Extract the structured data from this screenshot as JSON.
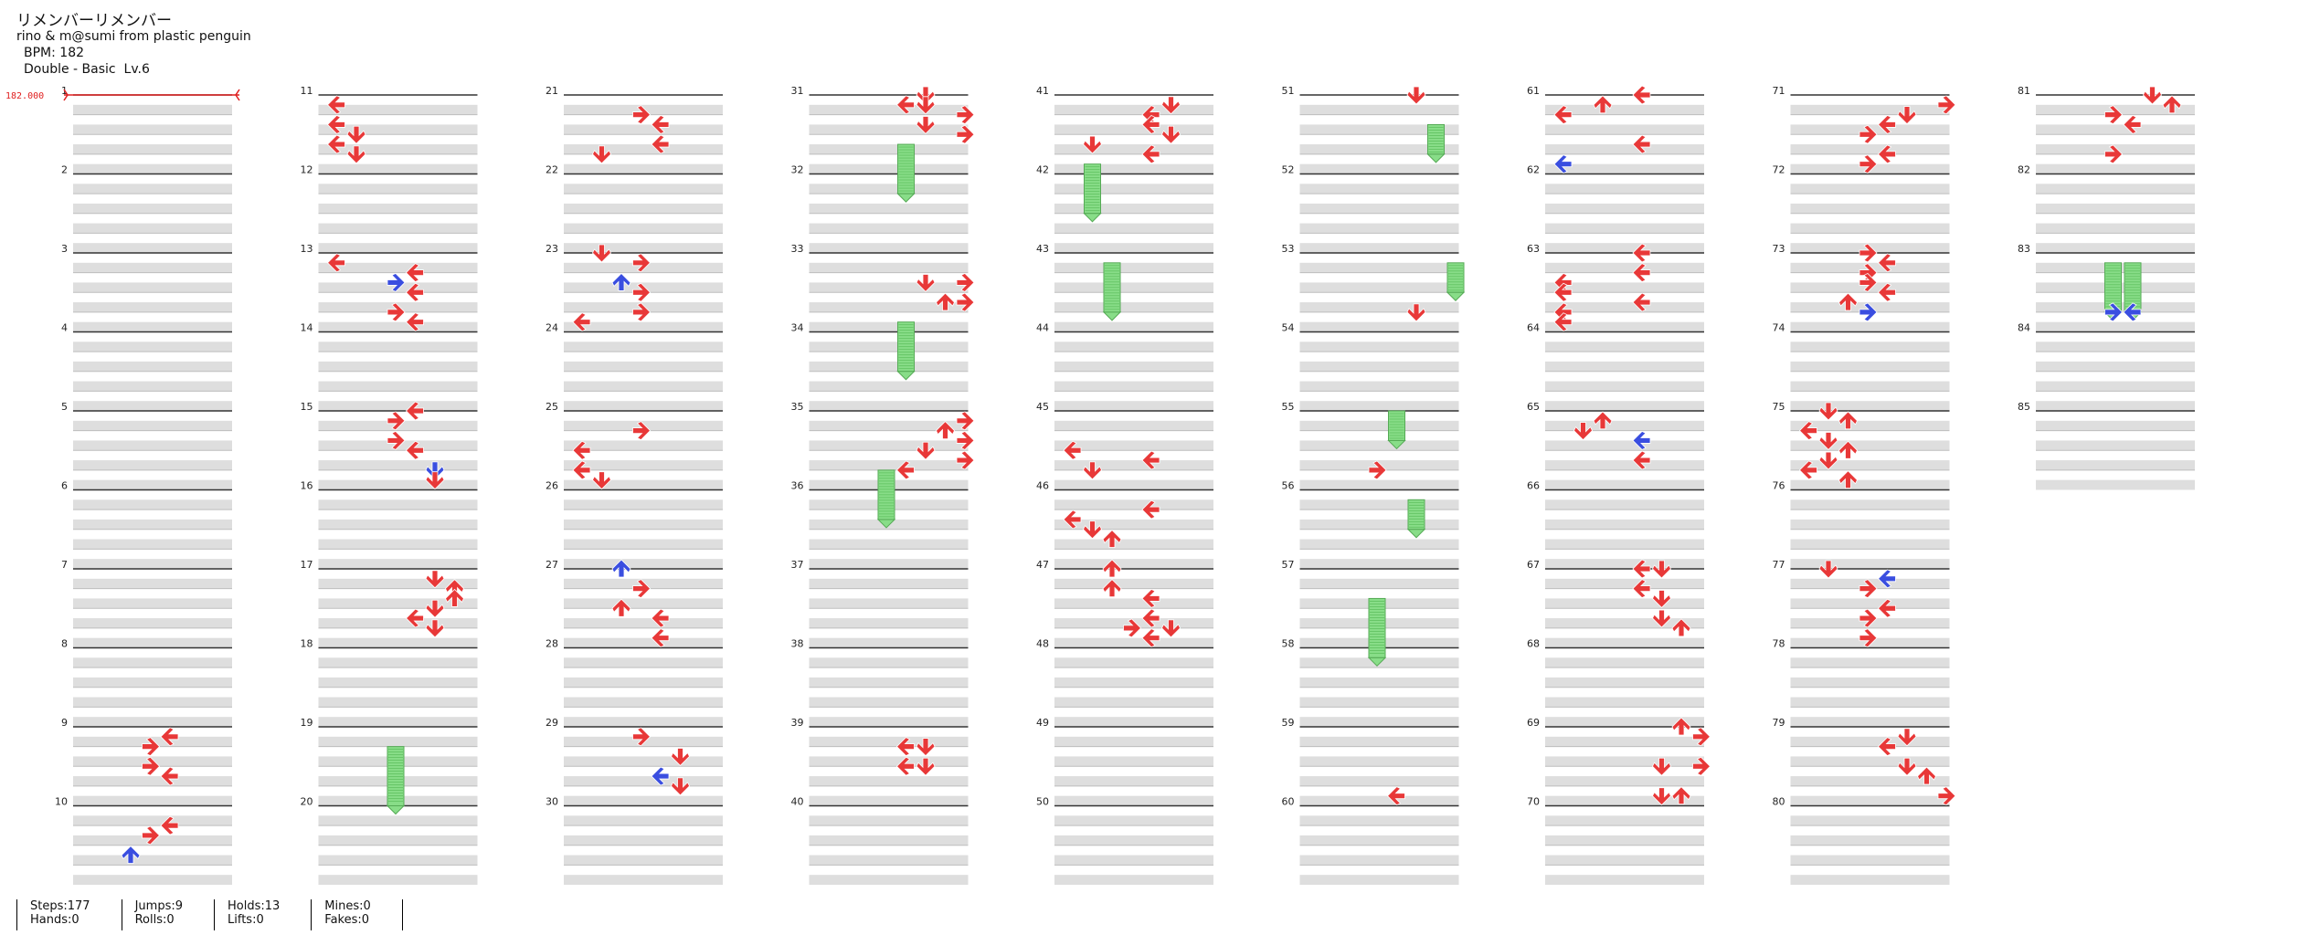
{
  "song": {
    "title": "リメンバーリメンバー",
    "artist": "rino & m@sumi from plastic penguin",
    "bpm_label": "BPM: 182",
    "difficulty": "Double - Basic  Lv.6",
    "bpm_marker": "182.000"
  },
  "measure_numbers": [
    1,
    2,
    3,
    4,
    5,
    6,
    7,
    8,
    9,
    10,
    11,
    12,
    13,
    14,
    15,
    16,
    17,
    18,
    19,
    20,
    21,
    22,
    23,
    24,
    25,
    26,
    27,
    28,
    29,
    30,
    31,
    32,
    33,
    34,
    35,
    36,
    37,
    38,
    39,
    40,
    41,
    42,
    43,
    44,
    45,
    46,
    47,
    48,
    49,
    50,
    51,
    52,
    53,
    54,
    55,
    56,
    57,
    58,
    59,
    60,
    61,
    62,
    63,
    64,
    65,
    66,
    67,
    68,
    69,
    70,
    71,
    72,
    73,
    74,
    75,
    76,
    77,
    78,
    79,
    80,
    81,
    82,
    83,
    84,
    85
  ],
  "total_measures": 85,
  "colors": {
    "red": "#e83838",
    "blue": "#3a4ee0",
    "green": "#88dd88",
    "stripe": "#dedede",
    "line": "#333333",
    "bpm": "#e02020"
  },
  "notes": [
    {
      "m": 9,
      "b": 0.5,
      "l": 4,
      "c": "r"
    },
    {
      "m": 9,
      "b": 1,
      "l": 3,
      "c": "r"
    },
    {
      "m": 9,
      "b": 2,
      "l": 3,
      "c": "r"
    },
    {
      "m": 9,
      "b": 2.5,
      "l": 4,
      "c": "r"
    },
    {
      "m": 10,
      "b": 1,
      "l": 4,
      "c": "r"
    },
    {
      "m": 10,
      "b": 1.5,
      "l": 3,
      "c": "r"
    },
    {
      "m": 10,
      "b": 2.5,
      "l": 2,
      "c": "b"
    },
    {
      "m": 11,
      "b": 0.5,
      "l": 0,
      "c": "r"
    },
    {
      "m": 11,
      "b": 1.5,
      "l": 0,
      "c": "r"
    },
    {
      "m": 11,
      "b": 2,
      "l": 1,
      "c": "r"
    },
    {
      "m": 11,
      "b": 2.5,
      "l": 0,
      "c": "r"
    },
    {
      "m": 11,
      "b": 3,
      "l": 1,
      "c": "r"
    },
    {
      "m": 13,
      "b": 0.5,
      "l": 0,
      "c": "r"
    },
    {
      "m": 13,
      "b": 1,
      "l": 4,
      "c": "r"
    },
    {
      "m": 13,
      "b": 1.5,
      "l": 3,
      "c": "b"
    },
    {
      "m": 13,
      "b": 2,
      "l": 4,
      "c": "r"
    },
    {
      "m": 13,
      "b": 3,
      "l": 3,
      "c": "r"
    },
    {
      "m": 13,
      "b": 3.5,
      "l": 4,
      "c": "r"
    },
    {
      "m": 15,
      "b": 0,
      "l": 4,
      "c": "r"
    },
    {
      "m": 15,
      "b": 0.5,
      "l": 3,
      "c": "r"
    },
    {
      "m": 15,
      "b": 1.5,
      "l": 3,
      "c": "r"
    },
    {
      "m": 15,
      "b": 2,
      "l": 4,
      "c": "r"
    },
    {
      "m": 15,
      "b": 3,
      "l": 5,
      "c": "b"
    },
    {
      "m": 15,
      "b": 3.5,
      "l": 5,
      "c": "r"
    },
    {
      "m": 17,
      "b": 0.5,
      "l": 5,
      "c": "r"
    },
    {
      "m": 17,
      "b": 1,
      "l": 6,
      "c": "r"
    },
    {
      "m": 17,
      "b": 1.5,
      "l": 6,
      "c": "r"
    },
    {
      "m": 17,
      "b": 2,
      "l": 5,
      "c": "r"
    },
    {
      "m": 17,
      "b": 2.5,
      "l": 4,
      "c": "r"
    },
    {
      "m": 17,
      "b": 3,
      "l": 5,
      "c": "r"
    },
    {
      "m": 21,
      "b": 1,
      "l": 3,
      "c": "r"
    },
    {
      "m": 21,
      "b": 1.5,
      "l": 4,
      "c": "r"
    },
    {
      "m": 21,
      "b": 2.5,
      "l": 4,
      "c": "r"
    },
    {
      "m": 21,
      "b": 3,
      "l": 1,
      "c": "r"
    },
    {
      "m": 23,
      "b": 0,
      "l": 1,
      "c": "r"
    },
    {
      "m": 23,
      "b": 0.5,
      "l": 3,
      "c": "r"
    },
    {
      "m": 23,
      "b": 1.5,
      "l": 2,
      "c": "b"
    },
    {
      "m": 23,
      "b": 2,
      "l": 3,
      "c": "r"
    },
    {
      "m": 23,
      "b": 3,
      "l": 3,
      "c": "r"
    },
    {
      "m": 23,
      "b": 3.5,
      "l": 0,
      "c": "r"
    },
    {
      "m": 25,
      "b": 1,
      "l": 3,
      "c": "r"
    },
    {
      "m": 25,
      "b": 2,
      "l": 0,
      "c": "r"
    },
    {
      "m": 25,
      "b": 3,
      "l": 0,
      "c": "r"
    },
    {
      "m": 25,
      "b": 3.5,
      "l": 1,
      "c": "r"
    },
    {
      "m": 27,
      "b": 0,
      "l": 2,
      "c": "b"
    },
    {
      "m": 27,
      "b": 1,
      "l": 3,
      "c": "r"
    },
    {
      "m": 27,
      "b": 2,
      "l": 2,
      "c": "r"
    },
    {
      "m": 27,
      "b": 2.5,
      "l": 4,
      "c": "r"
    },
    {
      "m": 27,
      "b": 3.5,
      "l": 4,
      "c": "r"
    },
    {
      "m": 29,
      "b": 0.5,
      "l": 3,
      "c": "r"
    },
    {
      "m": 29,
      "b": 1.5,
      "l": 5,
      "c": "r"
    },
    {
      "m": 29,
      "b": 2.5,
      "l": 4,
      "c": "b"
    },
    {
      "m": 29,
      "b": 3,
      "l": 5,
      "c": "r"
    },
    {
      "m": 31,
      "b": 0,
      "l": 5,
      "c": "r"
    },
    {
      "m": 31,
      "b": 0.5,
      "l": 4,
      "c": "r"
    },
    {
      "m": 31,
      "b": 0.5,
      "l": 5,
      "c": "r"
    },
    {
      "m": 31,
      "b": 1,
      "l": 7,
      "c": "r"
    },
    {
      "m": 31,
      "b": 1.5,
      "l": 5,
      "c": "r"
    },
    {
      "m": 31,
      "b": 2,
      "l": 7,
      "c": "r"
    },
    {
      "m": 33,
      "b": 1.5,
      "l": 5,
      "c": "r"
    },
    {
      "m": 33,
      "b": 1.5,
      "l": 7,
      "c": "r"
    },
    {
      "m": 33,
      "b": 2.5,
      "l": 6,
      "c": "r"
    },
    {
      "m": 33,
      "b": 2.5,
      "l": 7,
      "c": "r"
    },
    {
      "m": 35,
      "b": 0.5,
      "l": 7,
      "c": "r"
    },
    {
      "m": 35,
      "b": 1,
      "l": 6,
      "c": "r"
    },
    {
      "m": 35,
      "b": 1.5,
      "l": 7,
      "c": "r"
    },
    {
      "m": 35,
      "b": 2,
      "l": 5,
      "c": "r"
    },
    {
      "m": 35,
      "b": 2.5,
      "l": 7,
      "c": "r"
    },
    {
      "m": 35,
      "b": 3,
      "l": 4,
      "c": "r"
    },
    {
      "m": 39,
      "b": 1,
      "l": 4,
      "c": "r"
    },
    {
      "m": 39,
      "b": 1,
      "l": 5,
      "c": "r"
    },
    {
      "m": 39,
      "b": 2,
      "l": 4,
      "c": "r"
    },
    {
      "m": 39,
      "b": 2,
      "l": 5,
      "c": "r"
    },
    {
      "m": 41,
      "b": 0.5,
      "l": 5,
      "c": "r"
    },
    {
      "m": 41,
      "b": 1,
      "l": 4,
      "c": "r"
    },
    {
      "m": 41,
      "b": 1.5,
      "l": 4,
      "c": "r"
    },
    {
      "m": 41,
      "b": 2,
      "l": 5,
      "c": "r"
    },
    {
      "m": 41,
      "b": 2.5,
      "l": 1,
      "c": "r"
    },
    {
      "m": 41,
      "b": 3,
      "l": 4,
      "c": "r"
    },
    {
      "m": 45,
      "b": 2,
      "l": 0,
      "c": "r"
    },
    {
      "m": 45,
      "b": 2.5,
      "l": 4,
      "c": "r"
    },
    {
      "m": 45,
      "b": 3,
      "l": 1,
      "c": "r"
    },
    {
      "m": 46,
      "b": 1,
      "l": 4,
      "c": "r"
    },
    {
      "m": 46,
      "b": 1.5,
      "l": 0,
      "c": "r"
    },
    {
      "m": 46,
      "b": 2,
      "l": 1,
      "c": "r"
    },
    {
      "m": 46,
      "b": 2.5,
      "l": 2,
      "c": "r"
    },
    {
      "m": 47,
      "b": 0,
      "l": 2,
      "c": "r"
    },
    {
      "m": 47,
      "b": 1,
      "l": 2,
      "c": "r"
    },
    {
      "m": 47,
      "b": 1.5,
      "l": 4,
      "c": "r"
    },
    {
      "m": 47,
      "b": 2.5,
      "l": 4,
      "c": "r"
    },
    {
      "m": 47,
      "b": 3,
      "l": 3,
      "c": "r"
    },
    {
      "m": 47,
      "b": 3,
      "l": 5,
      "c": "r"
    },
    {
      "m": 47,
      "b": 3.5,
      "l": 4,
      "c": "r"
    },
    {
      "m": 51,
      "b": 0,
      "l": 5,
      "c": "r"
    },
    {
      "m": 53,
      "b": 3,
      "l": 5,
      "c": "r"
    },
    {
      "m": 55,
      "b": 3,
      "l": 3,
      "c": "r"
    },
    {
      "m": 59,
      "b": 3.5,
      "l": 4,
      "c": "r"
    },
    {
      "m": 61,
      "b": 0,
      "l": 4,
      "c": "r"
    },
    {
      "m": 61,
      "b": 0.5,
      "l": 2,
      "c": "r"
    },
    {
      "m": 61,
      "b": 1,
      "l": 0,
      "c": "r"
    },
    {
      "m": 61,
      "b": 2.5,
      "l": 4,
      "c": "r"
    },
    {
      "m": 61,
      "b": 3.5,
      "l": 0,
      "c": "b"
    },
    {
      "m": 63,
      "b": 0,
      "l": 4,
      "c": "r"
    },
    {
      "m": 63,
      "b": 1,
      "l": 4,
      "c": "r"
    },
    {
      "m": 63,
      "b": 1.5,
      "l": 0,
      "c": "r"
    },
    {
      "m": 63,
      "b": 2,
      "l": 0,
      "c": "r"
    },
    {
      "m": 63,
      "b": 2.5,
      "l": 4,
      "c": "r"
    },
    {
      "m": 63,
      "b": 3,
      "l": 0,
      "c": "r"
    },
    {
      "m": 63,
      "b": 3.5,
      "l": 0,
      "c": "r"
    },
    {
      "m": 65,
      "b": 0.5,
      "l": 2,
      "c": "r"
    },
    {
      "m": 65,
      "b": 1,
      "l": 1,
      "c": "r"
    },
    {
      "m": 65,
      "b": 1.5,
      "l": 4,
      "c": "b"
    },
    {
      "m": 65,
      "b": 2.5,
      "l": 4,
      "c": "r"
    },
    {
      "m": 67,
      "b": 0,
      "l": 4,
      "c": "r"
    },
    {
      "m": 67,
      "b": 0,
      "l": 5,
      "c": "r"
    },
    {
      "m": 67,
      "b": 1,
      "l": 4,
      "c": "r"
    },
    {
      "m": 67,
      "b": 1.5,
      "l": 5,
      "c": "r"
    },
    {
      "m": 67,
      "b": 2.5,
      "l": 5,
      "c": "r"
    },
    {
      "m": 67,
      "b": 3,
      "l": 6,
      "c": "r"
    },
    {
      "m": 69,
      "b": 0,
      "l": 6,
      "c": "r"
    },
    {
      "m": 69,
      "b": 0.5,
      "l": 7,
      "c": "r"
    },
    {
      "m": 69,
      "b": 2,
      "l": 5,
      "c": "r"
    },
    {
      "m": 69,
      "b": 2,
      "l": 7,
      "c": "r"
    },
    {
      "m": 69,
      "b": 3.5,
      "l": 5,
      "c": "r"
    },
    {
      "m": 69,
      "b": 3.5,
      "l": 6,
      "c": "r"
    },
    {
      "m": 71,
      "b": 0.5,
      "l": 7,
      "c": "r"
    },
    {
      "m": 71,
      "b": 1,
      "l": 5,
      "c": "r"
    },
    {
      "m": 71,
      "b": 1.5,
      "l": 4,
      "c": "r"
    },
    {
      "m": 71,
      "b": 2,
      "l": 3,
      "c": "r"
    },
    {
      "m": 71,
      "b": 3,
      "l": 4,
      "c": "r"
    },
    {
      "m": 71,
      "b": 3.5,
      "l": 3,
      "c": "r"
    },
    {
      "m": 73,
      "b": 0,
      "l": 3,
      "c": "r"
    },
    {
      "m": 73,
      "b": 0.5,
      "l": 4,
      "c": "r"
    },
    {
      "m": 73,
      "b": 1,
      "l": 3,
      "c": "r"
    },
    {
      "m": 73,
      "b": 1.5,
      "l": 3,
      "c": "r"
    },
    {
      "m": 73,
      "b": 2,
      "l": 4,
      "c": "r"
    },
    {
      "m": 73,
      "b": 2.5,
      "l": 2,
      "c": "r"
    },
    {
      "m": 73,
      "b": 3,
      "l": 3,
      "c": "b"
    },
    {
      "m": 75,
      "b": 0,
      "l": 1,
      "c": "r"
    },
    {
      "m": 75,
      "b": 0.5,
      "l": 2,
      "c": "r"
    },
    {
      "m": 75,
      "b": 1,
      "l": 0,
      "c": "r"
    },
    {
      "m": 75,
      "b": 1.5,
      "l": 1,
      "c": "r"
    },
    {
      "m": 75,
      "b": 2,
      "l": 2,
      "c": "r"
    },
    {
      "m": 75,
      "b": 2.5,
      "l": 1,
      "c": "r"
    },
    {
      "m": 75,
      "b": 3,
      "l": 0,
      "c": "r"
    },
    {
      "m": 75,
      "b": 3.5,
      "l": 2,
      "c": "r"
    },
    {
      "m": 77,
      "b": 0,
      "l": 1,
      "c": "r"
    },
    {
      "m": 77,
      "b": 0.5,
      "l": 4,
      "c": "b"
    },
    {
      "m": 77,
      "b": 1,
      "l": 3,
      "c": "r"
    },
    {
      "m": 77,
      "b": 2,
      "l": 4,
      "c": "r"
    },
    {
      "m": 77,
      "b": 2.5,
      "l": 3,
      "c": "r"
    },
    {
      "m": 77,
      "b": 3.5,
      "l": 3,
      "c": "r"
    },
    {
      "m": 79,
      "b": 0.5,
      "l": 5,
      "c": "r"
    },
    {
      "m": 79,
      "b": 1,
      "l": 4,
      "c": "r"
    },
    {
      "m": 79,
      "b": 2,
      "l": 5,
      "c": "r"
    },
    {
      "m": 79,
      "b": 2.5,
      "l": 6,
      "c": "r"
    },
    {
      "m": 79,
      "b": 3.5,
      "l": 7,
      "c": "r"
    },
    {
      "m": 81,
      "b": 0,
      "l": 5,
      "c": "r"
    },
    {
      "m": 81,
      "b": 0.5,
      "l": 6,
      "c": "r"
    },
    {
      "m": 81,
      "b": 1,
      "l": 3,
      "c": "r"
    },
    {
      "m": 81,
      "b": 1.5,
      "l": 4,
      "c": "r"
    },
    {
      "m": 81,
      "b": 3,
      "l": 3,
      "c": "r"
    },
    {
      "m": 83,
      "b": 3,
      "l": 3,
      "c": "b"
    },
    {
      "m": 83,
      "b": 3,
      "l": 4,
      "c": "b"
    }
  ],
  "holds": [
    {
      "m": 19,
      "b": 1,
      "l": 3,
      "len": 3
    },
    {
      "m": 31,
      "b": 2.5,
      "l": 4,
      "len": 2.5
    },
    {
      "m": 33,
      "b": 3.5,
      "l": 4,
      "len": 2.5
    },
    {
      "m": 35,
      "b": 3,
      "l": 3,
      "len": 2.5
    },
    {
      "m": 41,
      "b": 3.5,
      "l": 1,
      "len": 2.5
    },
    {
      "m": 43,
      "b": 0.5,
      "l": 2,
      "len": 2.5
    },
    {
      "m": 51,
      "b": 1.5,
      "l": 6,
      "len": 1.5
    },
    {
      "m": 53,
      "b": 0.5,
      "l": 7,
      "len": 1.5
    },
    {
      "m": 55,
      "b": 0,
      "l": 4,
      "len": 1.5
    },
    {
      "m": 56,
      "b": 0.5,
      "l": 5,
      "len": 1.5
    },
    {
      "m": 57,
      "b": 1.5,
      "l": 3,
      "len": 3
    },
    {
      "m": 83,
      "b": 0.5,
      "l": 3,
      "len": 2.5
    },
    {
      "m": 83,
      "b": 0.5,
      "l": 4,
      "len": 2.5
    }
  ],
  "stats": [
    {
      "line1": "Steps:177",
      "line2": "Hands:0"
    },
    {
      "line1": "Jumps:9",
      "line2": "Rolls:0"
    },
    {
      "line1": "Holds:13",
      "line2": "Lifts:0"
    },
    {
      "line1": "Mines:0",
      "line2": "Fakes:0"
    }
  ]
}
